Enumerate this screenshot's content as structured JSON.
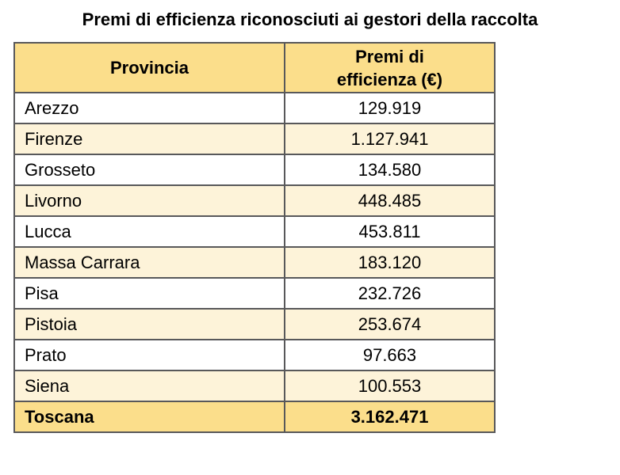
{
  "page": {
    "title": "Premi di efficienza riconosciuti ai gestori della raccolta"
  },
  "table": {
    "header": {
      "col_provincia": "Provincia",
      "col_premi": "Premi di\nefficienza (€)"
    },
    "rows": [
      {
        "provincia": "Arezzo",
        "premi": "129.919"
      },
      {
        "provincia": "Firenze",
        "premi": "1.127.941"
      },
      {
        "provincia": "Grosseto",
        "premi": "134.580"
      },
      {
        "provincia": "Livorno",
        "premi": "448.485"
      },
      {
        "provincia": "Lucca",
        "premi": "453.811"
      },
      {
        "provincia": "Massa Carrara",
        "premi": "183.120"
      },
      {
        "provincia": "Pisa",
        "premi": "232.726"
      },
      {
        "provincia": "Pistoia",
        "premi": "253.674"
      },
      {
        "provincia": "Prato",
        "premi": "97.663"
      },
      {
        "provincia": "Siena",
        "premi": "100.553"
      }
    ],
    "total": {
      "provincia": "Toscana",
      "premi": "3.162.471"
    }
  },
  "colors": {
    "header_bg": "#FBDE8B",
    "alt_row_bg": "#FDF3D9",
    "border": "#58585A",
    "text": "#000000",
    "page_bg": "#FFFFFF"
  },
  "chart_data": {
    "type": "table",
    "title": "Premi di efficienza riconosciuti ai gestori della raccolta",
    "columns": [
      "Provincia",
      "Premi di efficienza (€)"
    ],
    "rows": [
      [
        "Arezzo",
        129919
      ],
      [
        "Firenze",
        1127941
      ],
      [
        "Grosseto",
        134580
      ],
      [
        "Livorno",
        448485
      ],
      [
        "Lucca",
        453811
      ],
      [
        "Massa Carrara",
        183120
      ],
      [
        "Pisa",
        232726
      ],
      [
        "Pistoia",
        253674
      ],
      [
        "Prato",
        97663
      ],
      [
        "Siena",
        100553
      ]
    ],
    "total_row": [
      "Toscana",
      3162471
    ],
    "unit": "EUR",
    "layout_hints": {
      "header_background": "#FBDE8B",
      "alternating_row_background": "#FDF3D9",
      "total_row_background": "#FBDE8B",
      "value_alignment": "center",
      "label_alignment": "left"
    }
  }
}
